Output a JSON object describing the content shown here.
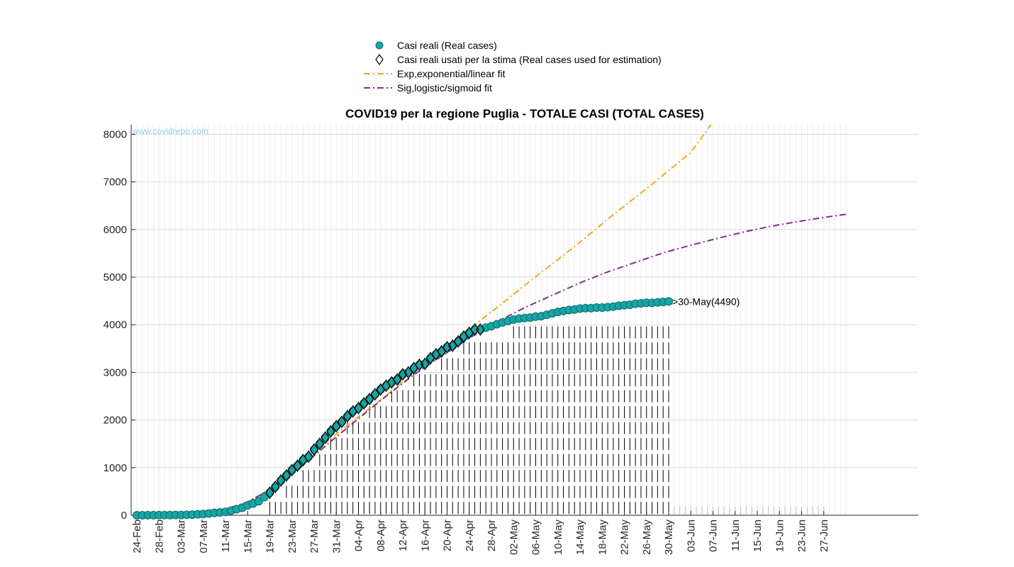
{
  "chart_data": {
    "type": "line",
    "title": "COVID19 per la regione Puglia - TOTALE CASI (TOTAL CASES)",
    "xlabel": "",
    "ylabel": "",
    "watermark": "www.covidrepo.com",
    "ylim": [
      0,
      8200
    ],
    "xlim": [
      "2020-02-24",
      "2020-07-01"
    ],
    "y_ticks": [
      0,
      1000,
      2000,
      3000,
      4000,
      5000,
      6000,
      7000,
      8000
    ],
    "x_ticks": [
      "24-Feb",
      "28-Feb",
      "03-Mar",
      "07-Mar",
      "11-Mar",
      "15-Mar",
      "19-Mar",
      "23-Mar",
      "27-Mar",
      "31-Mar",
      "04-Apr",
      "08-Apr",
      "12-Apr",
      "16-Apr",
      "20-Apr",
      "24-Apr",
      "28-Apr",
      "02-May",
      "06-May",
      "10-May",
      "14-May",
      "18-May",
      "22-May",
      "26-May",
      "30-May",
      "03-Jun",
      "07-Jun",
      "11-Jun",
      "15-Jun",
      "19-Jun",
      "23-Jun",
      "27-Jun"
    ],
    "grid": true,
    "legend_position": "top-center",
    "legend": [
      {
        "label": "Casi reali (Real cases)",
        "marker": "circle",
        "color": "#17a5a5"
      },
      {
        "label": "Casi reali usati per la stima (Real cases used for estimation)",
        "marker": "diamond",
        "color": "#000000"
      },
      {
        "label": "Exp,exponential/linear fit",
        "marker": "dashdot",
        "color": "#f0a81e"
      },
      {
        "label": "Sig,logistic/sigmoid fit",
        "marker": "dashdot",
        "color": "#7e2f8e"
      }
    ],
    "annotation": ">30-May(4490)",
    "real_cases": {
      "x": [
        "2020-02-24",
        "2020-02-25",
        "2020-02-26",
        "2020-02-27",
        "2020-02-28",
        "2020-02-29",
        "2020-03-01",
        "2020-03-02",
        "2020-03-03",
        "2020-03-04",
        "2020-03-05",
        "2020-03-06",
        "2020-03-07",
        "2020-03-08",
        "2020-03-09",
        "2020-03-10",
        "2020-03-11",
        "2020-03-12",
        "2020-03-13",
        "2020-03-14",
        "2020-03-15",
        "2020-03-16",
        "2020-03-17",
        "2020-03-18",
        "2020-03-19",
        "2020-03-20",
        "2020-03-21",
        "2020-03-22",
        "2020-03-23",
        "2020-03-24",
        "2020-03-25",
        "2020-03-26",
        "2020-03-27",
        "2020-03-28",
        "2020-03-29",
        "2020-03-30",
        "2020-03-31",
        "2020-04-01",
        "2020-04-02",
        "2020-04-03",
        "2020-04-04",
        "2020-04-05",
        "2020-04-06",
        "2020-04-07",
        "2020-04-08",
        "2020-04-09",
        "2020-04-10",
        "2020-04-11",
        "2020-04-12",
        "2020-04-13",
        "2020-04-14",
        "2020-04-15",
        "2020-04-16",
        "2020-04-17",
        "2020-04-18",
        "2020-04-19",
        "2020-04-20",
        "2020-04-21",
        "2020-04-22",
        "2020-04-23",
        "2020-04-24",
        "2020-04-25",
        "2020-04-26",
        "2020-04-27",
        "2020-04-28",
        "2020-04-29",
        "2020-04-30",
        "2020-05-01",
        "2020-05-02",
        "2020-05-03",
        "2020-05-04",
        "2020-05-05",
        "2020-05-06",
        "2020-05-07",
        "2020-05-08",
        "2020-05-09",
        "2020-05-10",
        "2020-05-11",
        "2020-05-12",
        "2020-05-13",
        "2020-05-14",
        "2020-05-15",
        "2020-05-16",
        "2020-05-17",
        "2020-05-18",
        "2020-05-19",
        "2020-05-20",
        "2020-05-21",
        "2020-05-22",
        "2020-05-23",
        "2020-05-24",
        "2020-05-25",
        "2020-05-26",
        "2020-05-27",
        "2020-05-28",
        "2020-05-29",
        "2020-05-30"
      ],
      "y": [
        0,
        0,
        1,
        1,
        3,
        3,
        3,
        5,
        6,
        9,
        13,
        20,
        26,
        37,
        50,
        59,
        70,
        97,
        129,
        158,
        207,
        248,
        294,
        381,
        474,
        597,
        730,
        837,
        950,
        1040,
        1160,
        1230,
        1380,
        1500,
        1630,
        1760,
        1870,
        1960,
        2080,
        2180,
        2250,
        2350,
        2440,
        2540,
        2640,
        2720,
        2790,
        2850,
        2960,
        3000,
        3090,
        3160,
        3180,
        3300,
        3380,
        3440,
        3530,
        3560,
        3650,
        3750,
        3830,
        3900,
        3900,
        3940,
        3970,
        4010,
        4050,
        4080,
        4110,
        4130,
        4140,
        4150,
        4170,
        4180,
        4210,
        4240,
        4270,
        4290,
        4310,
        4320,
        4340,
        4350,
        4350,
        4360,
        4360,
        4370,
        4380,
        4400,
        4410,
        4420,
        4440,
        4450,
        4460,
        4460,
        4470,
        4480,
        4490
      ]
    },
    "estimation_cases": {
      "x": [
        "2020-03-19",
        "2020-03-20",
        "2020-03-21",
        "2020-03-22",
        "2020-03-23",
        "2020-03-24",
        "2020-03-25",
        "2020-03-26",
        "2020-03-27",
        "2020-03-28",
        "2020-03-29",
        "2020-03-30",
        "2020-03-31",
        "2020-04-01",
        "2020-04-02",
        "2020-04-03",
        "2020-04-04",
        "2020-04-05",
        "2020-04-06",
        "2020-04-07",
        "2020-04-08",
        "2020-04-09",
        "2020-04-10",
        "2020-04-11",
        "2020-04-12",
        "2020-04-13",
        "2020-04-14",
        "2020-04-15",
        "2020-04-16",
        "2020-04-17",
        "2020-04-18",
        "2020-04-19",
        "2020-04-20",
        "2020-04-21",
        "2020-04-22",
        "2020-04-23",
        "2020-04-24",
        "2020-04-25",
        "2020-04-26"
      ],
      "y": [
        474,
        597,
        730,
        837,
        950,
        1040,
        1160,
        1230,
        1380,
        1500,
        1630,
        1760,
        1870,
        1960,
        2080,
        2180,
        2250,
        2350,
        2440,
        2540,
        2640,
        2720,
        2790,
        2850,
        2960,
        3000,
        3090,
        3160,
        3180,
        3300,
        3380,
        3440,
        3530,
        3560,
        3650,
        3750,
        3830,
        3900,
        3900
      ]
    },
    "exp_fit": {
      "name": "Exp,exponential/linear fit",
      "x": [
        "2020-03-11",
        "2020-03-18",
        "2020-03-25",
        "2020-04-01",
        "2020-04-08",
        "2020-04-15",
        "2020-04-22",
        "2020-04-29",
        "2020-05-06",
        "2020-05-13",
        "2020-05-20",
        "2020-05-27",
        "2020-06-03",
        "2020-06-07"
      ],
      "y": [
        0,
        480,
        1130,
        1800,
        2420,
        3090,
        3730,
        4360,
        5010,
        5640,
        6310,
        6950,
        7620,
        8260
      ]
    },
    "sig_fit": {
      "name": "Sig,logistic/sigmoid fit",
      "x": [
        "2020-02-24",
        "2020-03-03",
        "2020-03-10",
        "2020-03-15",
        "2020-03-20",
        "2020-03-25",
        "2020-03-30",
        "2020-04-04",
        "2020-04-09",
        "2020-04-14",
        "2020-04-19",
        "2020-04-24",
        "2020-04-29",
        "2020-05-04",
        "2020-05-09",
        "2020-05-14",
        "2020-05-19",
        "2020-05-24",
        "2020-05-29",
        "2020-06-03",
        "2020-06-08",
        "2020-06-13",
        "2020-06-18",
        "2020-06-23",
        "2020-06-28",
        "2020-07-01"
      ],
      "y": [
        0,
        20,
        90,
        280,
        600,
        1050,
        1550,
        2030,
        2500,
        2950,
        3340,
        3720,
        4060,
        4360,
        4620,
        4880,
        5110,
        5310,
        5510,
        5670,
        5820,
        5960,
        6080,
        6180,
        6270,
        6320
      ]
    }
  }
}
